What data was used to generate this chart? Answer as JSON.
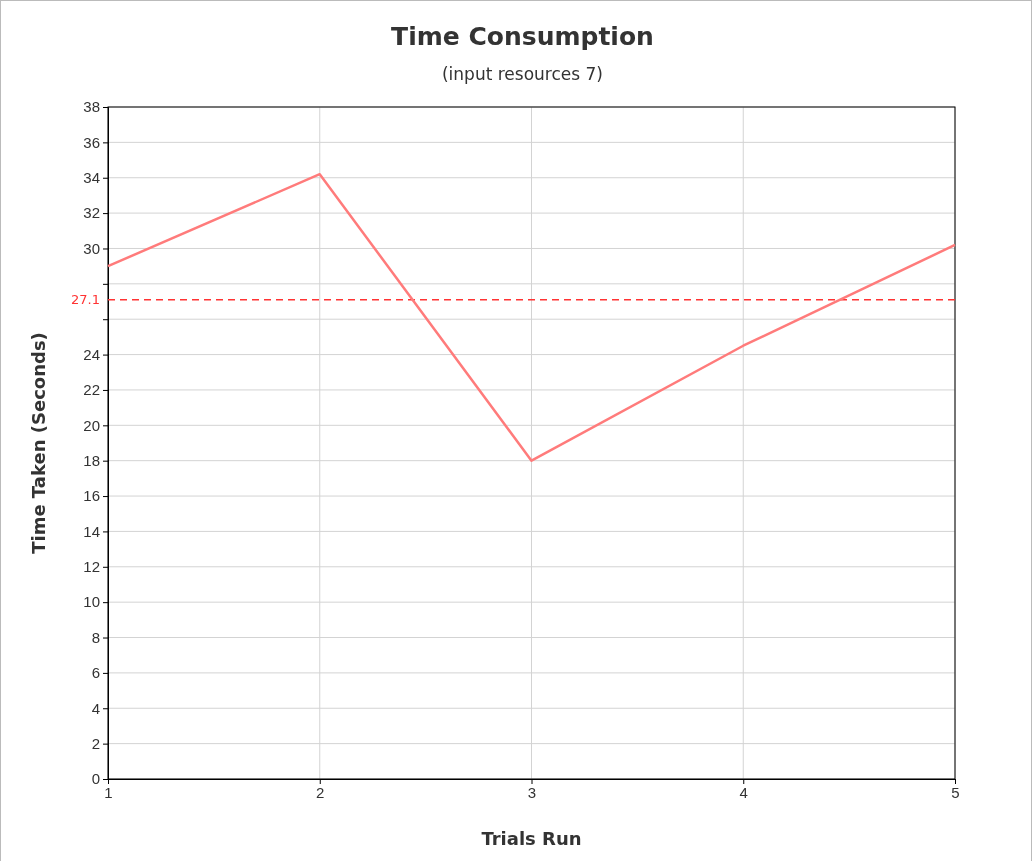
{
  "chart_data": {
    "type": "line",
    "title": "Time Consumption",
    "subtitle": "(input resources 7)",
    "xlabel": "Trials Run",
    "ylabel": "Time Taken (Seconds)",
    "x": [
      1,
      2,
      3,
      4,
      5
    ],
    "series": [
      {
        "color": "#ff7b7b",
        "values": [
          29,
          34.2,
          18,
          24.5,
          30.2
        ]
      }
    ],
    "xlim": [
      1,
      5
    ],
    "xticks": [
      1,
      2,
      3,
      4,
      5
    ],
    "ylim": [
      0,
      38
    ],
    "yticks": [
      0,
      2,
      4,
      6,
      8,
      10,
      12,
      14,
      16,
      18,
      20,
      22,
      24,
      {
        "value": 26,
        "label": null
      },
      {
        "value": 28,
        "label": null
      },
      30,
      32,
      34,
      36,
      38
    ],
    "ref_lines": [
      {
        "axis": "y",
        "value": 27.1,
        "label": "27.1",
        "color": "#ff3333",
        "line_style": "dashed"
      }
    ],
    "grid": true,
    "marker": "none",
    "line_style": "solid"
  }
}
